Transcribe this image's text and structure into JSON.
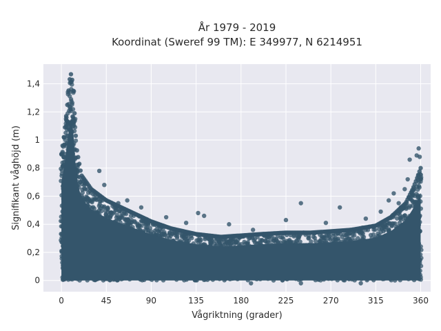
{
  "chart_data": {
    "type": "scatter",
    "title_line1": "År 1979 - 2019",
    "title_line2": "Koordinat (Sweref 99 TM): E 349977, N 6214951",
    "xlabel": "Vågriktning (grader)",
    "ylabel": "Signifikant våghöjd (m)",
    "xlim": [
      -18,
      370
    ],
    "ylim": [
      -0.08,
      1.54
    ],
    "xticks": [
      0,
      45,
      90,
      135,
      180,
      225,
      270,
      315,
      360
    ],
    "xtick_labels": [
      "0",
      "45",
      "90",
      "135",
      "180",
      "225",
      "270",
      "315",
      "360"
    ],
    "yticks": [
      0,
      0.2,
      0.4,
      0.6,
      0.8,
      1.0,
      1.2,
      1.4
    ],
    "ytick_labels": [
      "0",
      "0,2",
      "0,4",
      "0,6",
      "0,8",
      "1",
      "1,2",
      "1,4"
    ],
    "grid": true,
    "colors": {
      "marker": "#34556b",
      "plot_bg": "#e8e8f0",
      "grid": "#ffffff"
    },
    "upper_envelope": {
      "x": [
        0,
        3,
        6,
        8,
        10,
        12,
        15,
        20,
        30,
        45,
        60,
        75,
        90,
        110,
        135,
        160,
        180,
        200,
        225,
        250,
        270,
        290,
        315,
        330,
        345,
        352,
        356,
        360
      ],
      "y": [
        0.9,
        1.05,
        1.25,
        1.42,
        1.48,
        1.35,
        0.95,
        0.75,
        0.65,
        0.57,
        0.52,
        0.47,
        0.42,
        0.37,
        0.33,
        0.31,
        0.32,
        0.33,
        0.34,
        0.34,
        0.35,
        0.36,
        0.39,
        0.45,
        0.55,
        0.65,
        0.72,
        0.8
      ]
    },
    "outliers": [
      {
        "x": 38,
        "y": 0.78
      },
      {
        "x": 43,
        "y": 0.68
      },
      {
        "x": 57,
        "y": 0.55
      },
      {
        "x": 66,
        "y": 0.57
      },
      {
        "x": 80,
        "y": 0.52
      },
      {
        "x": 105,
        "y": 0.45
      },
      {
        "x": 125,
        "y": 0.41
      },
      {
        "x": 137,
        "y": 0.48
      },
      {
        "x": 143,
        "y": 0.46
      },
      {
        "x": 168,
        "y": 0.4
      },
      {
        "x": 192,
        "y": 0.36
      },
      {
        "x": 225,
        "y": 0.43
      },
      {
        "x": 240,
        "y": 0.55
      },
      {
        "x": 265,
        "y": 0.41
      },
      {
        "x": 279,
        "y": 0.52
      },
      {
        "x": 305,
        "y": 0.44
      },
      {
        "x": 320,
        "y": 0.49
      },
      {
        "x": 328,
        "y": 0.57
      },
      {
        "x": 333,
        "y": 0.62
      },
      {
        "x": 338,
        "y": 0.55
      },
      {
        "x": 344,
        "y": 0.65
      },
      {
        "x": 347,
        "y": 0.72
      },
      {
        "x": 349,
        "y": 0.86
      },
      {
        "x": 356,
        "y": 0.89
      },
      {
        "x": 358,
        "y": 0.94
      },
      {
        "x": 359,
        "y": 0.88
      },
      {
        "x": 190,
        "y": -0.02
      },
      {
        "x": 240,
        "y": -0.02
      },
      {
        "x": 300,
        "y": -0.02
      }
    ]
  }
}
